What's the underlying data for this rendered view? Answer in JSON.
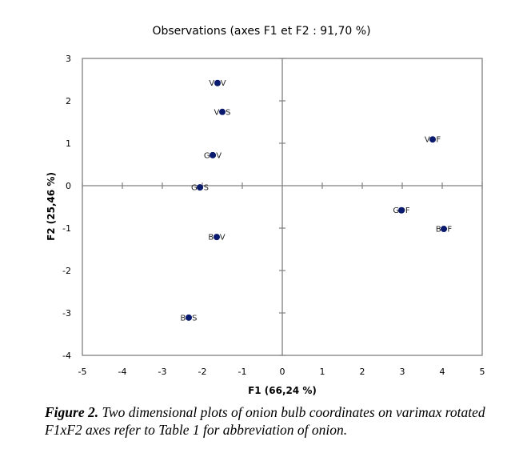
{
  "chart_data": {
    "type": "scatter",
    "title": "Observations (axes F1 et F2 : 91,70 %)",
    "xlabel": "F1 (66,24 %)",
    "ylabel": "F2 (25,46 %)",
    "xlim": [
      -5,
      5
    ],
    "ylim": [
      -4,
      3
    ],
    "xticks": [
      "-5",
      "-4",
      "-3",
      "-2",
      "-1",
      "0",
      "1",
      "2",
      "3",
      "4",
      "5"
    ],
    "yticks": [
      "3",
      "2",
      "1",
      "0",
      "-1",
      "-2",
      "-3",
      "-4"
    ],
    "grid": false,
    "marker_color": "#0a1a6e",
    "points": [
      {
        "label": "VOV",
        "x": -1.62,
        "y": 2.42
      },
      {
        "label": "VOS",
        "x": -1.5,
        "y": 1.74
      },
      {
        "label": "GOV",
        "x": -1.74,
        "y": 0.72
      },
      {
        "label": "GOS",
        "x": -2.06,
        "y": -0.04
      },
      {
        "label": "BOV",
        "x": -1.64,
        "y": -1.21
      },
      {
        "label": "BOS",
        "x": -2.34,
        "y": -3.11
      },
      {
        "label": "VOF",
        "x": 3.76,
        "y": 1.09
      },
      {
        "label": "GOF",
        "x": 2.98,
        "y": -0.58
      },
      {
        "label": "BOF",
        "x": 4.04,
        "y": -1.02
      }
    ]
  },
  "caption": {
    "label": "Figure 2.",
    "text": " Two dimensional plots of onion bulb coordinates on varimax rotated F1xF2 axes refer to Table 1 for abbreviation of onion."
  }
}
